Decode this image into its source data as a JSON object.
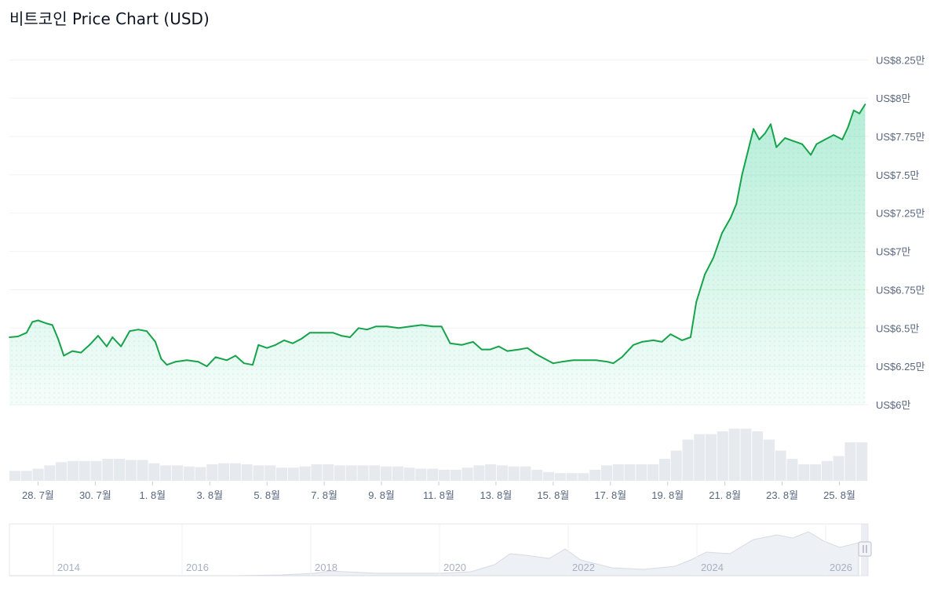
{
  "title": "비트코인 Price Chart (USD)",
  "colors": {
    "line": "#16a34a",
    "area_top": "#16c784",
    "grid": "#eff2f5",
    "volume": "#e6e9ee",
    "navigator_line": "#d6dbe3",
    "navigator_fill": "#edf0f4",
    "handle": "#c7ccd6"
  },
  "chart_data": {
    "type": "area",
    "title": "비트코인 Price Chart (USD)",
    "xlabel": "",
    "ylabel": "",
    "ylim": [
      60000,
      84000
    ],
    "y_ticks": [
      {
        "value": 82500,
        "label": "US$8.25만"
      },
      {
        "value": 80000,
        "label": "US$8만"
      },
      {
        "value": 77500,
        "label": "US$7.75만"
      },
      {
        "value": 75000,
        "label": "US$7.5만"
      },
      {
        "value": 72500,
        "label": "US$7.25만"
      },
      {
        "value": 70000,
        "label": "US$7만"
      },
      {
        "value": 67500,
        "label": "US$6.75만"
      },
      {
        "value": 65000,
        "label": "US$6.5만"
      },
      {
        "value": 62500,
        "label": "US$6.25만"
      },
      {
        "value": 60000,
        "label": "US$6만"
      }
    ],
    "x_range": [
      0,
      30
    ],
    "x_ticks": [
      {
        "day": 1,
        "label": "28. 7월"
      },
      {
        "day": 3,
        "label": "30. 7월"
      },
      {
        "day": 5,
        "label": "1. 8월"
      },
      {
        "day": 7,
        "label": "3. 8월"
      },
      {
        "day": 9,
        "label": "5. 8월"
      },
      {
        "day": 11,
        "label": "7. 8월"
      },
      {
        "day": 13,
        "label": "9. 8월"
      },
      {
        "day": 15,
        "label": "11. 8월"
      },
      {
        "day": 17,
        "label": "13. 8월"
      },
      {
        "day": 19,
        "label": "15. 8월"
      },
      {
        "day": 21,
        "label": "17. 8월"
      },
      {
        "day": 23,
        "label": "19. 8월"
      },
      {
        "day": 25,
        "label": "21. 8월"
      },
      {
        "day": 27,
        "label": "23. 8월"
      },
      {
        "day": 29,
        "label": "25. 8월"
      }
    ],
    "grid": true,
    "series": [
      {
        "values": [
          [
            0,
            64400
          ],
          [
            0.3,
            64450
          ],
          [
            0.6,
            64700
          ],
          [
            0.8,
            65400
          ],
          [
            1.0,
            65500
          ],
          [
            1.3,
            65300
          ],
          [
            1.5,
            65200
          ],
          [
            1.7,
            64300
          ],
          [
            1.9,
            63200
          ],
          [
            2.2,
            63500
          ],
          [
            2.5,
            63400
          ],
          [
            2.8,
            63900
          ],
          [
            3.1,
            64500
          ],
          [
            3.4,
            63800
          ],
          [
            3.6,
            64400
          ],
          [
            3.9,
            63800
          ],
          [
            4.2,
            64800
          ],
          [
            4.5,
            64900
          ],
          [
            4.8,
            64800
          ],
          [
            5.1,
            64100
          ],
          [
            5.3,
            63000
          ],
          [
            5.5,
            62600
          ],
          [
            5.8,
            62800
          ],
          [
            6.2,
            62900
          ],
          [
            6.6,
            62800
          ],
          [
            6.9,
            62500
          ],
          [
            7.2,
            63100
          ],
          [
            7.6,
            62900
          ],
          [
            7.9,
            63200
          ],
          [
            8.2,
            62700
          ],
          [
            8.5,
            62600
          ],
          [
            8.7,
            63900
          ],
          [
            9.0,
            63700
          ],
          [
            9.3,
            63900
          ],
          [
            9.6,
            64200
          ],
          [
            9.9,
            64000
          ],
          [
            10.2,
            64300
          ],
          [
            10.5,
            64700
          ],
          [
            10.9,
            64700
          ],
          [
            11.3,
            64700
          ],
          [
            11.6,
            64500
          ],
          [
            11.9,
            64400
          ],
          [
            12.2,
            65000
          ],
          [
            12.5,
            64900
          ],
          [
            12.8,
            65100
          ],
          [
            13.2,
            65100
          ],
          [
            13.6,
            65000
          ],
          [
            14.0,
            65100
          ],
          [
            14.4,
            65200
          ],
          [
            14.8,
            65100
          ],
          [
            15.1,
            65100
          ],
          [
            15.4,
            64000
          ],
          [
            15.8,
            63900
          ],
          [
            16.2,
            64100
          ],
          [
            16.5,
            63600
          ],
          [
            16.8,
            63600
          ],
          [
            17.1,
            63800
          ],
          [
            17.4,
            63500
          ],
          [
            17.8,
            63600
          ],
          [
            18.1,
            63700
          ],
          [
            18.4,
            63300
          ],
          [
            18.7,
            63000
          ],
          [
            19.0,
            62700
          ],
          [
            19.3,
            62800
          ],
          [
            19.7,
            62900
          ],
          [
            20.1,
            62900
          ],
          [
            20.5,
            62900
          ],
          [
            20.9,
            62800
          ],
          [
            21.1,
            62700
          ],
          [
            21.4,
            63100
          ],
          [
            21.8,
            63900
          ],
          [
            22.1,
            64100
          ],
          [
            22.5,
            64200
          ],
          [
            22.8,
            64100
          ],
          [
            23.1,
            64600
          ],
          [
            23.5,
            64200
          ],
          [
            23.8,
            64400
          ],
          [
            24.0,
            66700
          ],
          [
            24.3,
            68500
          ],
          [
            24.6,
            69600
          ],
          [
            24.9,
            71200
          ],
          [
            25.2,
            72200
          ],
          [
            25.4,
            73100
          ],
          [
            25.6,
            75000
          ],
          [
            25.8,
            76500
          ],
          [
            26.0,
            78000
          ],
          [
            26.2,
            77300
          ],
          [
            26.4,
            77700
          ],
          [
            26.6,
            78300
          ],
          [
            26.8,
            76800
          ],
          [
            27.1,
            77400
          ],
          [
            27.4,
            77200
          ],
          [
            27.7,
            77000
          ],
          [
            28.0,
            76300
          ],
          [
            28.2,
            77000
          ],
          [
            28.5,
            77300
          ],
          [
            28.8,
            77600
          ],
          [
            29.1,
            77300
          ],
          [
            29.3,
            78100
          ],
          [
            29.5,
            79200
          ],
          [
            29.7,
            79000
          ],
          [
            29.9,
            79600
          ]
        ]
      }
    ],
    "volume_relative": [
      0.18,
      0.18,
      0.22,
      0.28,
      0.34,
      0.36,
      0.36,
      0.36,
      0.4,
      0.4,
      0.38,
      0.38,
      0.32,
      0.28,
      0.28,
      0.26,
      0.25,
      0.3,
      0.32,
      0.32,
      0.3,
      0.28,
      0.28,
      0.24,
      0.24,
      0.26,
      0.3,
      0.3,
      0.28,
      0.28,
      0.28,
      0.28,
      0.26,
      0.26,
      0.24,
      0.22,
      0.22,
      0.2,
      0.2,
      0.24,
      0.28,
      0.3,
      0.28,
      0.26,
      0.26,
      0.2,
      0.16,
      0.14,
      0.14,
      0.14,
      0.2,
      0.28,
      0.3,
      0.3,
      0.3,
      0.3,
      0.4,
      0.55,
      0.75,
      0.85,
      0.85,
      0.9,
      0.95,
      0.95,
      0.9,
      0.75,
      0.55,
      0.4,
      0.3,
      0.3,
      0.36,
      0.45,
      0.7,
      0.7
    ],
    "navigator": {
      "x_labels": [
        "2014",
        "2016",
        "2018",
        "2020",
        "2022",
        "2024",
        "2026"
      ]
    }
  }
}
